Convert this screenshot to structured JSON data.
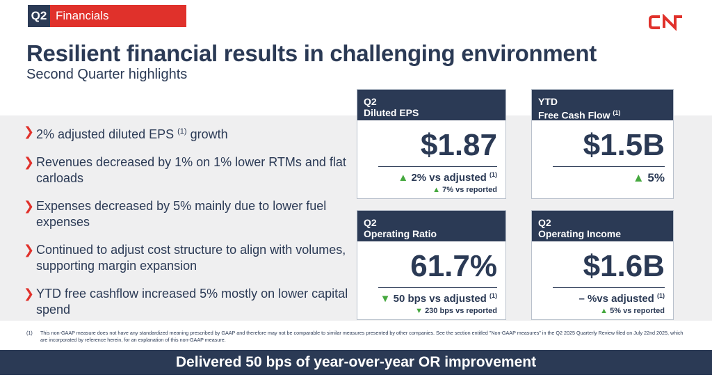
{
  "header": {
    "quarter_tag": "Q2",
    "section_tag": "Financials",
    "logo_text": "CN",
    "title": "Resilient financial results in challenging environment",
    "subtitle": "Second Quarter highlights"
  },
  "colors": {
    "navy": "#2b3a55",
    "red": "#e0312b",
    "green": "#46a83f",
    "band": "#efeff0"
  },
  "bullets": [
    {
      "text": "2% adjusted diluted EPS ",
      "sup": "(1)",
      "tail": " growth"
    },
    {
      "text": "Revenues decreased by 1% on 1% lower RTMs and flat carloads",
      "sup": "",
      "tail": ""
    },
    {
      "text": "Expenses decreased by 5% mainly due to lower fuel expenses",
      "sup": "",
      "tail": ""
    },
    {
      "text": "Continued to adjust cost structure to align with volumes, supporting margin expansion",
      "sup": "",
      "tail": ""
    },
    {
      "text": "YTD free cashflow increased 5% mostly on lower capital spend",
      "sup": "",
      "tail": ""
    }
  ],
  "cards": {
    "eps": {
      "head_line1": "Q2",
      "head_line2": "Diluted EPS",
      "value": "$1.87",
      "main_icon": "triangle-up-icon",
      "main_text": "2% vs adjusted ",
      "main_sup": "(1)",
      "sub_icon": "triangle-up-icon",
      "sub_text": "7% vs reported"
    },
    "fcf": {
      "head_line1": "YTD",
      "head_line2": "Free Cash Flow ",
      "head_sup": "(1)",
      "value": "$1.5B",
      "main_icon": "triangle-up-icon",
      "main_text": "5%"
    },
    "or": {
      "head_line1": "Q2",
      "head_line2": "Operating Ratio",
      "value": "61.7%",
      "main_icon": "triangle-down-icon",
      "main_text": "50 bps vs adjusted ",
      "main_sup": "(1)",
      "sub_icon": "triangle-down-icon",
      "sub_text": "230 bps vs reported"
    },
    "oi": {
      "head_line1": "Q2",
      "head_line2": "Operating Income",
      "value": "$1.6B",
      "main_text": "– %vs adjusted ",
      "main_sup": "(1)",
      "sub_icon": "triangle-up-icon",
      "sub_text": "5% vs reported"
    }
  },
  "footnote": {
    "num": "(1)",
    "text": "This non-GAAP measure does not have any standardized meaning prescribed by GAAP and therefore may not be comparable to similar measures presented by other companies. See the section entitled \"Non-GAAP measures\" in the Q2 2025 Quarterly Review filed on July 22nd 2025, which are incorporated by reference herein, for an explanation of this non-GAAP measure."
  },
  "banner": {
    "text": "Delivered 50 bps of year-over-year OR improvement"
  }
}
